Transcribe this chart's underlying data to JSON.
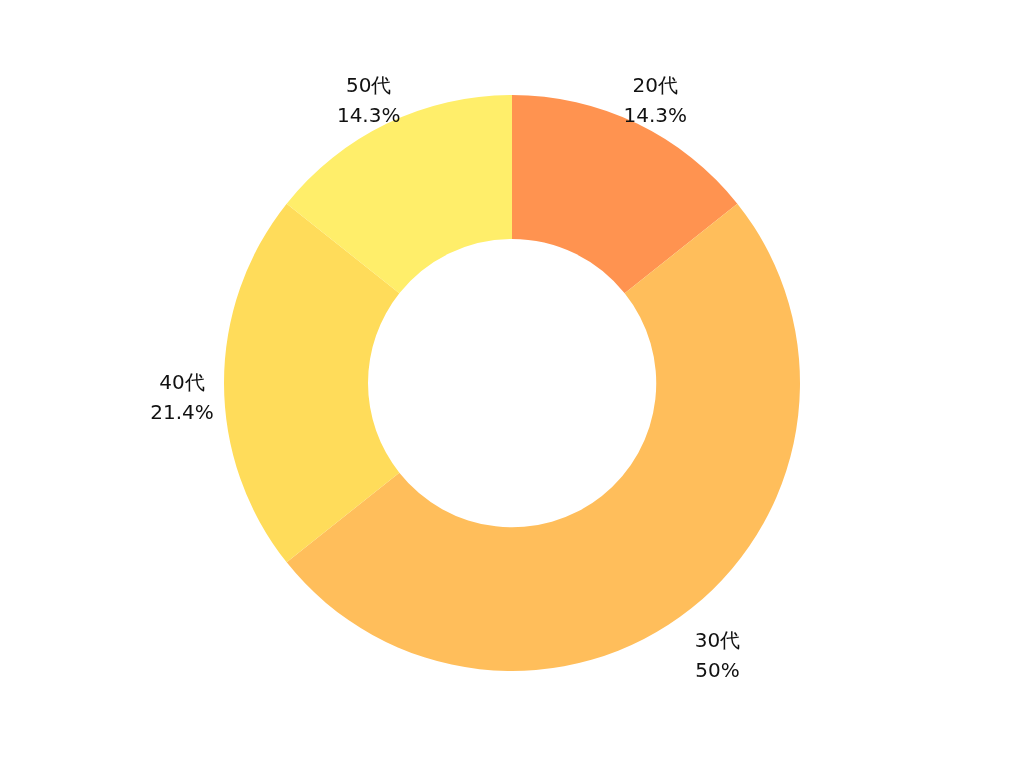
{
  "chart_data": {
    "type": "donut",
    "categories": [
      "20代",
      "30代",
      "40代",
      "50代"
    ],
    "values": [
      14.3,
      50,
      21.4,
      14.3
    ],
    "colors": [
      "#ff9350",
      "#ffbe5b",
      "#ffdc5a",
      "#ffee6a"
    ],
    "value_labels": [
      "14.3%",
      "50%",
      "21.4%",
      "14.3%"
    ]
  }
}
